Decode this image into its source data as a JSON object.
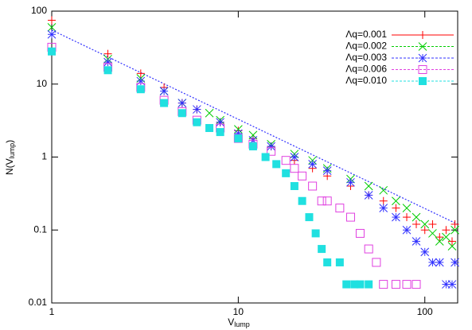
{
  "chart_data": {
    "type": "scatter",
    "log_x": true,
    "log_y": true,
    "grid": false,
    "legend": "top-right",
    "xlabel": {
      "main": "V",
      "sub": "lump"
    },
    "ylabel": {
      "main": "N(V",
      "sub": "lump",
      "end": ")"
    },
    "xlim": [
      1,
      150
    ],
    "ylim": [
      0.01,
      100
    ],
    "xticks": [
      1,
      10,
      100
    ],
    "yticks": [
      0.01,
      0.1,
      1,
      10,
      100
    ],
    "fit_line": {
      "color": "#3030ff",
      "x": [
        1,
        150
      ],
      "values": [
        55,
        0.12
      ]
    },
    "series": [
      {
        "name": "Λq=0.001",
        "color": "#ff0000",
        "marker": "plus",
        "x": [
          1,
          2,
          3,
          4,
          5,
          6,
          8,
          10,
          12,
          15,
          20,
          25,
          30,
          40,
          50,
          60,
          70,
          80,
          90,
          100,
          110,
          120,
          130,
          140,
          145
        ],
        "values": [
          75,
          26,
          14,
          9,
          5.5,
          4.5,
          3,
          2.3,
          1.8,
          1.4,
          0.9,
          0.7,
          0.55,
          0.4,
          0.3,
          0.25,
          0.2,
          0.15,
          0.12,
          0.1,
          0.12,
          0.08,
          0.1,
          0.07,
          0.12
        ]
      },
      {
        "name": "Λq=0.002",
        "color": "#00cc00",
        "marker": "cross",
        "x": [
          1,
          2,
          3,
          4,
          5,
          7,
          8,
          10,
          12,
          15,
          20,
          25,
          30,
          40,
          50,
          60,
          70,
          80,
          90,
          100,
          110,
          120,
          130,
          140,
          145
        ],
        "values": [
          60,
          22,
          12,
          8,
          5.5,
          4,
          3.2,
          2.4,
          2,
          1.5,
          1.1,
          0.9,
          0.7,
          0.5,
          0.4,
          0.35,
          0.25,
          0.2,
          0.15,
          0.12,
          0.09,
          0.07,
          0.08,
          0.06,
          0.1
        ]
      },
      {
        "name": "Λq=0.003",
        "color": "#3030ff",
        "marker": "star",
        "x": [
          1,
          2,
          3,
          4,
          5,
          6,
          8,
          10,
          12,
          15,
          20,
          25,
          30,
          40,
          50,
          60,
          70,
          80,
          90,
          100,
          110,
          120,
          130,
          140,
          145
        ],
        "values": [
          48,
          20,
          11,
          8,
          5.5,
          4.5,
          3,
          2.1,
          1.7,
          1.4,
          1,
          0.8,
          0.65,
          0.45,
          0.3,
          0.2,
          0.15,
          0.1,
          0.07,
          0.05,
          0.036,
          0.036,
          0.018,
          0.018,
          0.036
        ]
      },
      {
        "name": "Λq=0.006",
        "color": "#e040e0",
        "marker": "square",
        "x": [
          1,
          2,
          3,
          4,
          5,
          6,
          8,
          10,
          12,
          15,
          18,
          20,
          22,
          25,
          28,
          30,
          35,
          40,
          45,
          50,
          55,
          60,
          70,
          80,
          90
        ],
        "values": [
          32,
          17,
          9,
          6,
          4.2,
          3.2,
          2.5,
          1.8,
          1.5,
          1.2,
          0.9,
          0.7,
          0.55,
          0.4,
          0.25,
          0.25,
          0.2,
          0.15,
          0.09,
          0.055,
          0.036,
          0.018,
          0.018,
          0.018,
          0.018
        ]
      },
      {
        "name": "Λq=0.010",
        "color": "#20e0e0",
        "marker": "filled-square",
        "x": [
          1,
          2,
          3,
          4,
          5,
          6,
          7,
          8,
          10,
          12,
          14,
          16,
          18,
          20,
          22,
          24,
          26,
          28,
          30,
          35,
          38,
          42,
          45,
          50
        ],
        "values": [
          28,
          15.5,
          8.5,
          5.5,
          4,
          3,
          2.5,
          2.2,
          1.8,
          1.4,
          1,
          0.8,
          0.6,
          0.4,
          0.25,
          0.15,
          0.09,
          0.055,
          0.036,
          0.036,
          0.018,
          0.018,
          0.018,
          0.018
        ]
      }
    ]
  }
}
